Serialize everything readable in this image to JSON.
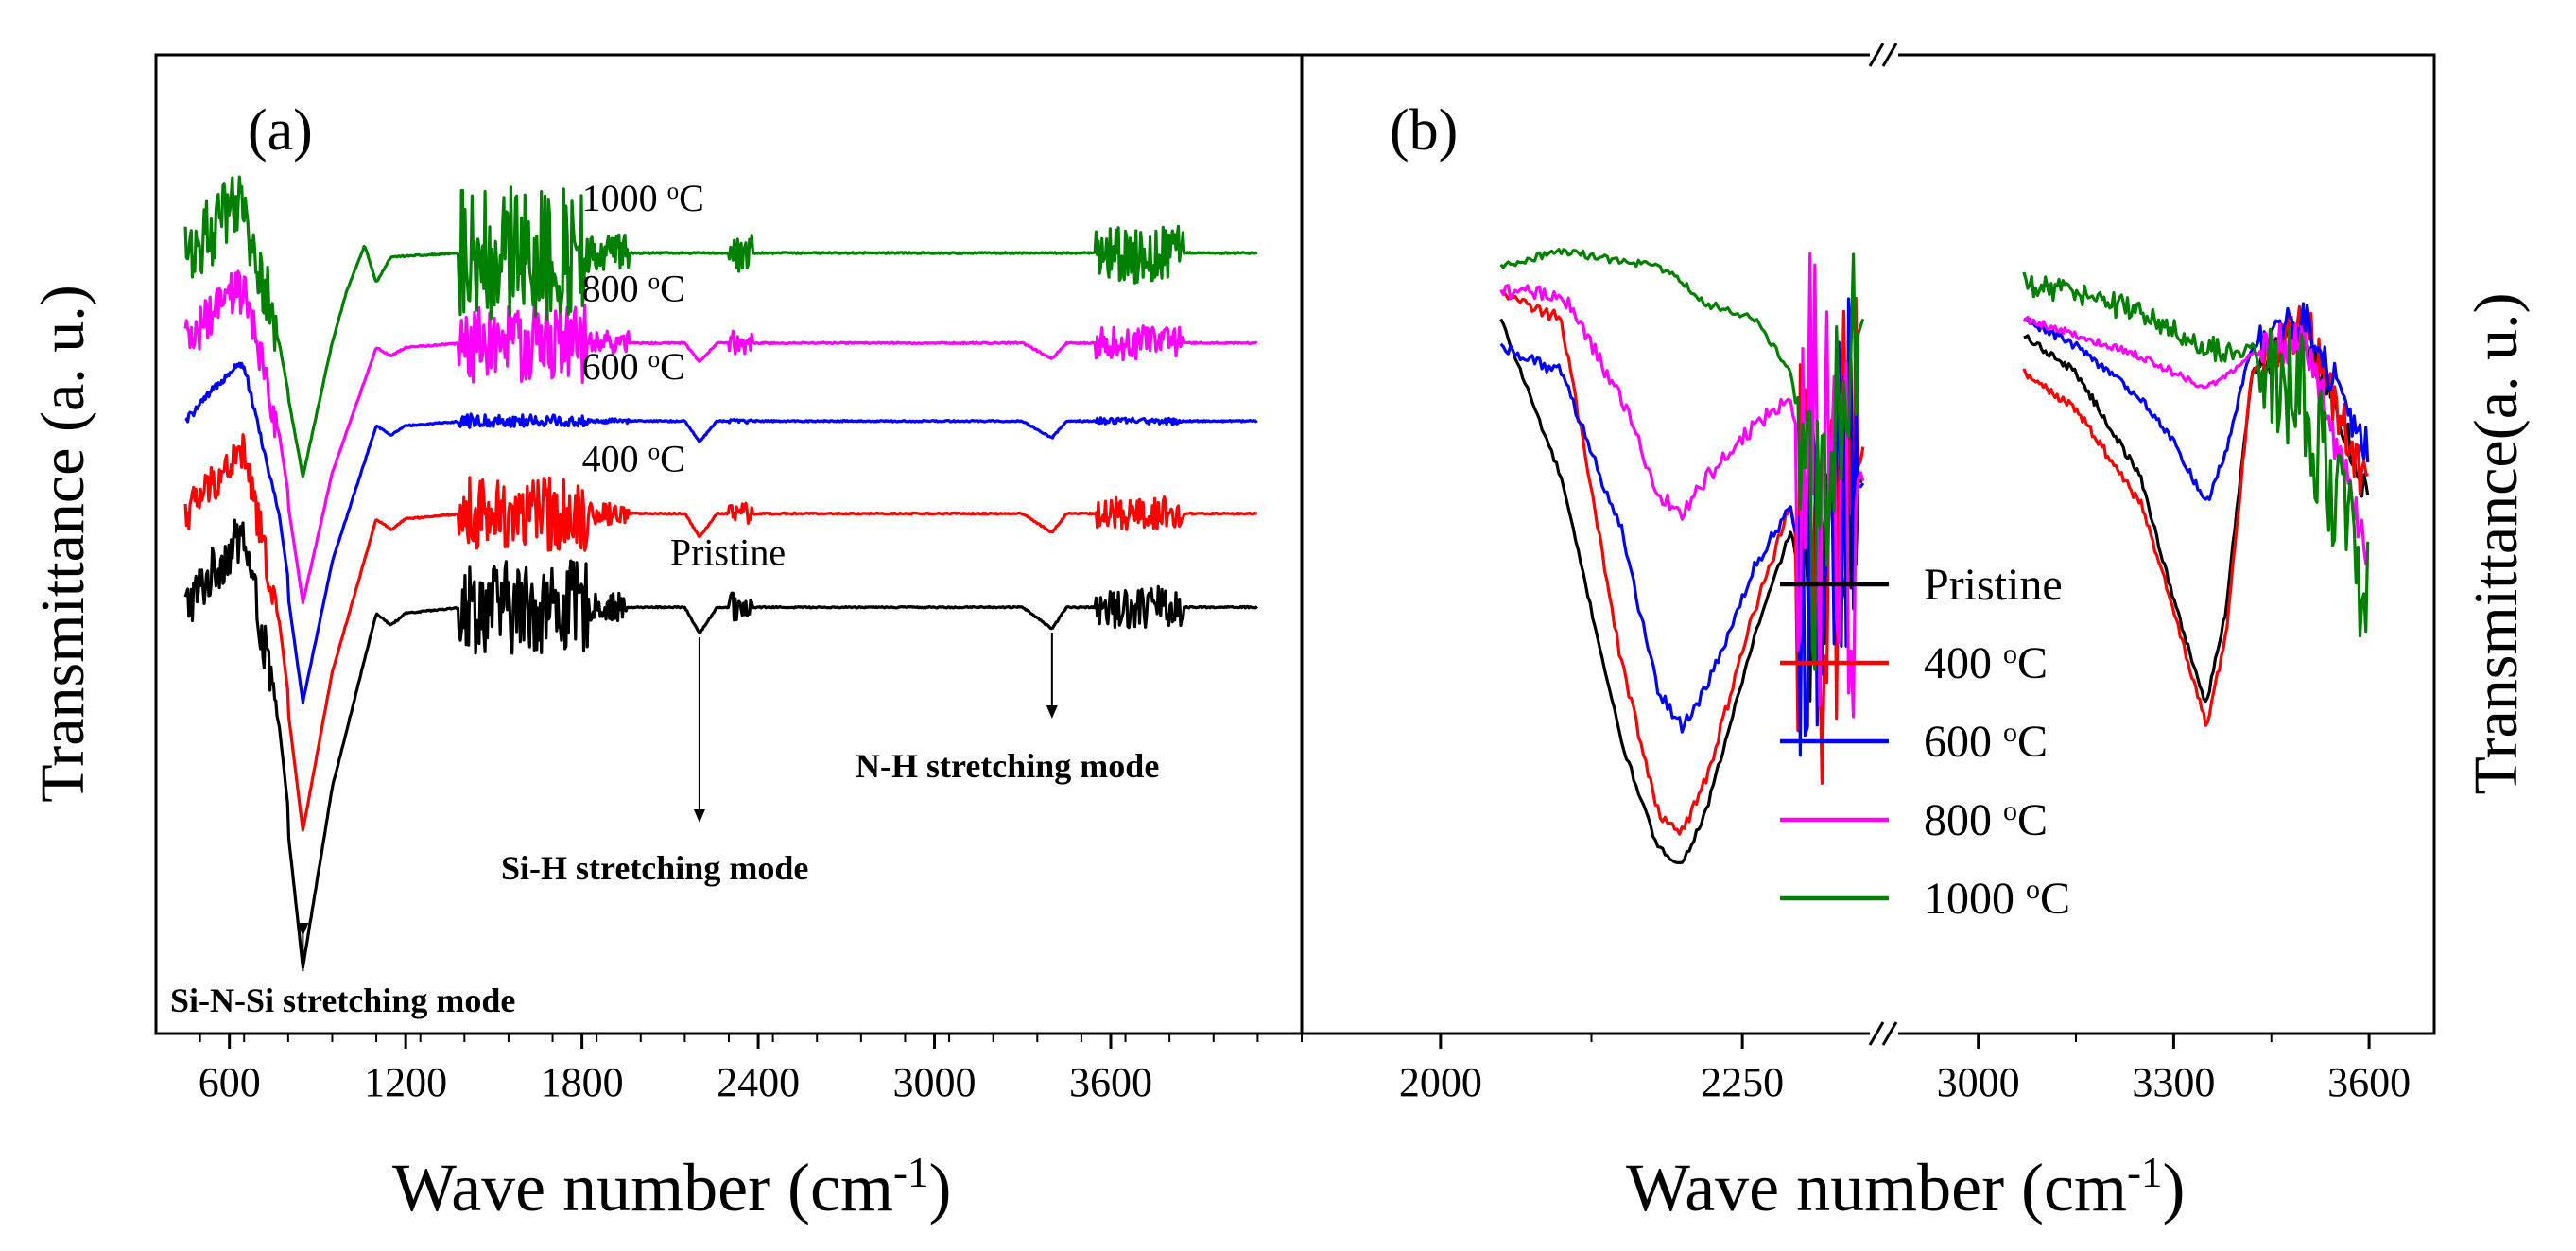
{
  "chart_data": [
    {
      "panel": "(a)",
      "type": "line",
      "xlabel": "Wave number (cm",
      "xlabel_sup": "-1",
      "xlabel_close": ")",
      "ylabel": "Transmittance (a. u.)",
      "xlim": [
        350,
        4250
      ],
      "x_ticks": [
        600,
        1200,
        1800,
        2400,
        3000,
        3600
      ],
      "x_minor_step": 150,
      "y_units": "arbitrary (offset stacked spectra)",
      "ylim": [
        -3.55,
        4.6
      ],
      "series": [
        {
          "name": "Pristine",
          "label": "Pristine",
          "color": "#000000",
          "offset": 0.0,
          "noise": 0.35,
          "dip_scale": 1.0,
          "baseline_x": [
            450,
            640,
            760
          ],
          "baseline_y": [
            0.0,
            0.35,
            0.2
          ],
          "x": [
            450,
            650,
            770,
            850,
            950,
            1100,
            1150,
            1200,
            1400,
            2150,
            2200,
            2260,
            3300,
            3400,
            3450,
            4100
          ],
          "y": [
            0.0,
            0.25,
            -1.2,
            -3.0,
            -1.5,
            -0.05,
            -0.15,
            -0.05,
            0.0,
            0.0,
            -0.22,
            0.0,
            0.0,
            -0.18,
            0.0,
            0.0
          ]
        },
        {
          "name": "400 °C",
          "label": "400 °C",
          "color": "#ff0000",
          "offset": 0.78,
          "noise": 0.28,
          "dip_scale": 0.88,
          "baseline_x": [
            450,
            640,
            760
          ],
          "baseline_y": [
            0.0,
            0.3,
            0.15
          ],
          "x": [
            450,
            650,
            770,
            850,
            950,
            1100,
            1150,
            1200,
            1400,
            2150,
            2200,
            2260,
            3300,
            3400,
            3450,
            4100
          ],
          "y": [
            0.0,
            0.25,
            -1.2,
            -3.0,
            -1.5,
            -0.05,
            -0.15,
            -0.05,
            0.0,
            0.0,
            -0.22,
            0.0,
            0.0,
            -0.18,
            0.0,
            0.0
          ]
        },
        {
          "name": "600 °C",
          "label": "600 °C",
          "color": "#0000ff",
          "offset": 1.55,
          "noise": 0.05,
          "dip_scale": 0.78,
          "baseline_x": [
            450,
            620,
            760
          ],
          "baseline_y": [
            0.0,
            0.3,
            0.15
          ],
          "x": [
            450,
            650,
            770,
            850,
            950,
            1100,
            1150,
            1200,
            1400,
            2150,
            2200,
            2260,
            3300,
            3400,
            3450,
            4100
          ],
          "y": [
            0.0,
            0.25,
            -1.2,
            -3.0,
            -1.5,
            -0.05,
            -0.15,
            -0.05,
            0.0,
            0.0,
            -0.22,
            0.0,
            0.0,
            -0.18,
            0.0,
            0.0
          ]
        },
        {
          "name": "800 °C",
          "label": "800 °C",
          "color": "#ff00ff",
          "offset": 2.2,
          "noise": 0.3,
          "dip_scale": 0.72,
          "baseline_x": [
            450,
            620,
            760
          ],
          "baseline_y": [
            0.0,
            0.28,
            0.1
          ],
          "x": [
            450,
            650,
            770,
            850,
            950,
            1100,
            1150,
            1200,
            1400,
            2150,
            2200,
            2260,
            3300,
            3400,
            3450,
            4100
          ],
          "y": [
            0.0,
            0.25,
            -1.2,
            -3.0,
            -1.5,
            -0.05,
            -0.15,
            -0.05,
            0.0,
            0.0,
            -0.22,
            0.0,
            0.0,
            -0.18,
            0.0,
            0.0
          ]
        },
        {
          "name": "1000 °C",
          "label": "1000 °C",
          "color": "#008000",
          "offset": 2.95,
          "noise": 0.5,
          "dip_scale": 0.62,
          "baseline_x": [
            450,
            620,
            760
          ],
          "baseline_y": [
            0.0,
            0.25,
            0.05
          ],
          "x": [
            450,
            650,
            770,
            850,
            950,
            1000,
            1060,
            1100,
            1150,
            1400,
            4100
          ],
          "y": [
            0.0,
            0.2,
            -1.3,
            -3.0,
            -1.2,
            -0.5,
            0.1,
            -0.4,
            -0.05,
            0.0,
            0.0
          ]
        }
      ],
      "annotations": [
        {
          "text": "Si-N-Si stretching mode",
          "arrow_x": 850
        },
        {
          "text": "Si-H stretching mode",
          "arrow_x": 2200
        },
        {
          "text": "N-H stretching mode",
          "arrow_x": 3400
        }
      ]
    },
    {
      "panel": "(b)",
      "type": "line",
      "xlabel": "Wave number (cm",
      "xlabel_sup": "-1",
      "xlabel_close": ")",
      "ylabel": "Transmittance(a. u.)",
      "x_break": true,
      "x_segments": [
        {
          "xlim": [
            1885,
            2365
          ],
          "ticks": [
            2000,
            2250
          ],
          "minor_ticks": [
            2125
          ]
        },
        {
          "xlim": [
            2880,
            3700
          ],
          "ticks": [
            3000,
            3300,
            3600
          ],
          "minor_ticks": [
            3150,
            3450
          ]
        }
      ],
      "ylim": [
        -1.3,
        0.55
      ],
      "series": [
        {
          "name": "Pristine",
          "label": "Pristine",
          "color": "#000000",
          "seg1_x": [
            2050,
            2100,
            2150,
            2180,
            2200,
            2220,
            2260,
            2290,
            2300,
            2310,
            2330,
            2350
          ],
          "seg1_y": [
            0.05,
            -0.25,
            -0.75,
            -0.95,
            -0.98,
            -0.88,
            -0.55,
            -0.35,
            -0.45,
            -0.5,
            -0.3,
            -0.25
          ],
          "seg1_noise": 0.1,
          "seg2_x": [
            3070,
            3150,
            3250,
            3300,
            3350,
            3380,
            3420,
            3500,
            3600
          ],
          "seg2_y": [
            0.02,
            -0.05,
            -0.25,
            -0.48,
            -0.68,
            -0.5,
            -0.05,
            0.02,
            -0.28
          ],
          "seg2_noise": 0.025
        },
        {
          "name": "400 °C",
          "label": "400 °C",
          "color": "#ff0000",
          "seg1_x": [
            2050,
            2100,
            2150,
            2180,
            2200,
            2220,
            2260,
            2290,
            2300,
            2310,
            2330,
            2350
          ],
          "seg1_y": [
            0.1,
            0.05,
            -0.6,
            -0.88,
            -0.92,
            -0.82,
            -0.5,
            -0.3,
            -0.45,
            -0.5,
            -0.3,
            -0.2
          ],
          "seg1_noise": 0.2,
          "seg2_x": [
            3070,
            3150,
            3250,
            3300,
            3350,
            3380,
            3420,
            3500,
            3600
          ],
          "seg2_y": [
            -0.05,
            -0.12,
            -0.3,
            -0.5,
            -0.72,
            -0.55,
            -0.05,
            0.05,
            -0.28
          ],
          "seg2_noise": 0.03
        },
        {
          "name": "600 °C",
          "label": "600 °C",
          "color": "#0000ff",
          "seg1_x": [
            2050,
            2100,
            2150,
            2180,
            2200,
            2220,
            2260,
            2290,
            2300,
            2310,
            2330,
            2350
          ],
          "seg1_y": [
            0.0,
            -0.05,
            -0.35,
            -0.65,
            -0.72,
            -0.65,
            -0.42,
            -0.3,
            -0.45,
            -0.5,
            -0.3,
            -0.25
          ],
          "seg1_noise": 0.2,
          "seg2_x": [
            3070,
            3150,
            3250,
            3300,
            3350,
            3380,
            3420,
            3500,
            3600
          ],
          "seg2_y": [
            0.05,
            0.0,
            -0.1,
            -0.18,
            -0.3,
            -0.2,
            0.0,
            0.05,
            -0.2
          ],
          "seg2_noise": 0.025
        },
        {
          "name": "800 °C",
          "label": "800 °C",
          "color": "#ff00ff",
          "seg1_x": [
            2050,
            2100,
            2150,
            2180,
            2200,
            2220,
            2260,
            2290,
            2300,
            2310,
            2330,
            2350
          ],
          "seg1_y": [
            0.1,
            0.1,
            -0.1,
            -0.28,
            -0.32,
            -0.25,
            -0.15,
            -0.1,
            -0.2,
            -0.3,
            -0.25,
            -0.25
          ],
          "seg1_noise": 0.25,
          "seg2_x": [
            3070,
            3150,
            3250,
            3300,
            3350,
            3380,
            3420,
            3500,
            3600
          ],
          "seg2_y": [
            0.05,
            0.02,
            -0.02,
            -0.05,
            -0.08,
            -0.06,
            -0.02,
            0.02,
            -0.4
          ],
          "seg2_noise": 0.025
        },
        {
          "name": "1000 °C",
          "label": "1000 °C",
          "color": "#008000",
          "seg1_x": [
            2050,
            2100,
            2150,
            2180,
            2200,
            2220,
            2260,
            2290,
            2300,
            2310,
            2330,
            2350
          ],
          "seg1_y": [
            0.15,
            0.18,
            0.16,
            0.15,
            0.12,
            0.08,
            0.05,
            -0.05,
            -0.2,
            -0.4,
            -0.1,
            0.05
          ],
          "seg1_noise": 0.12,
          "seg2_x": [
            3070,
            3150,
            3250,
            3300,
            3350,
            3380,
            3420,
            3500,
            3600
          ],
          "seg2_y": [
            0.12,
            0.1,
            0.06,
            0.03,
            0.0,
            -0.02,
            0.0,
            -0.1,
            -0.5
          ],
          "seg2_noise": 0.08
        }
      ],
      "legend": {
        "placement": "bottom-center"
      }
    }
  ]
}
